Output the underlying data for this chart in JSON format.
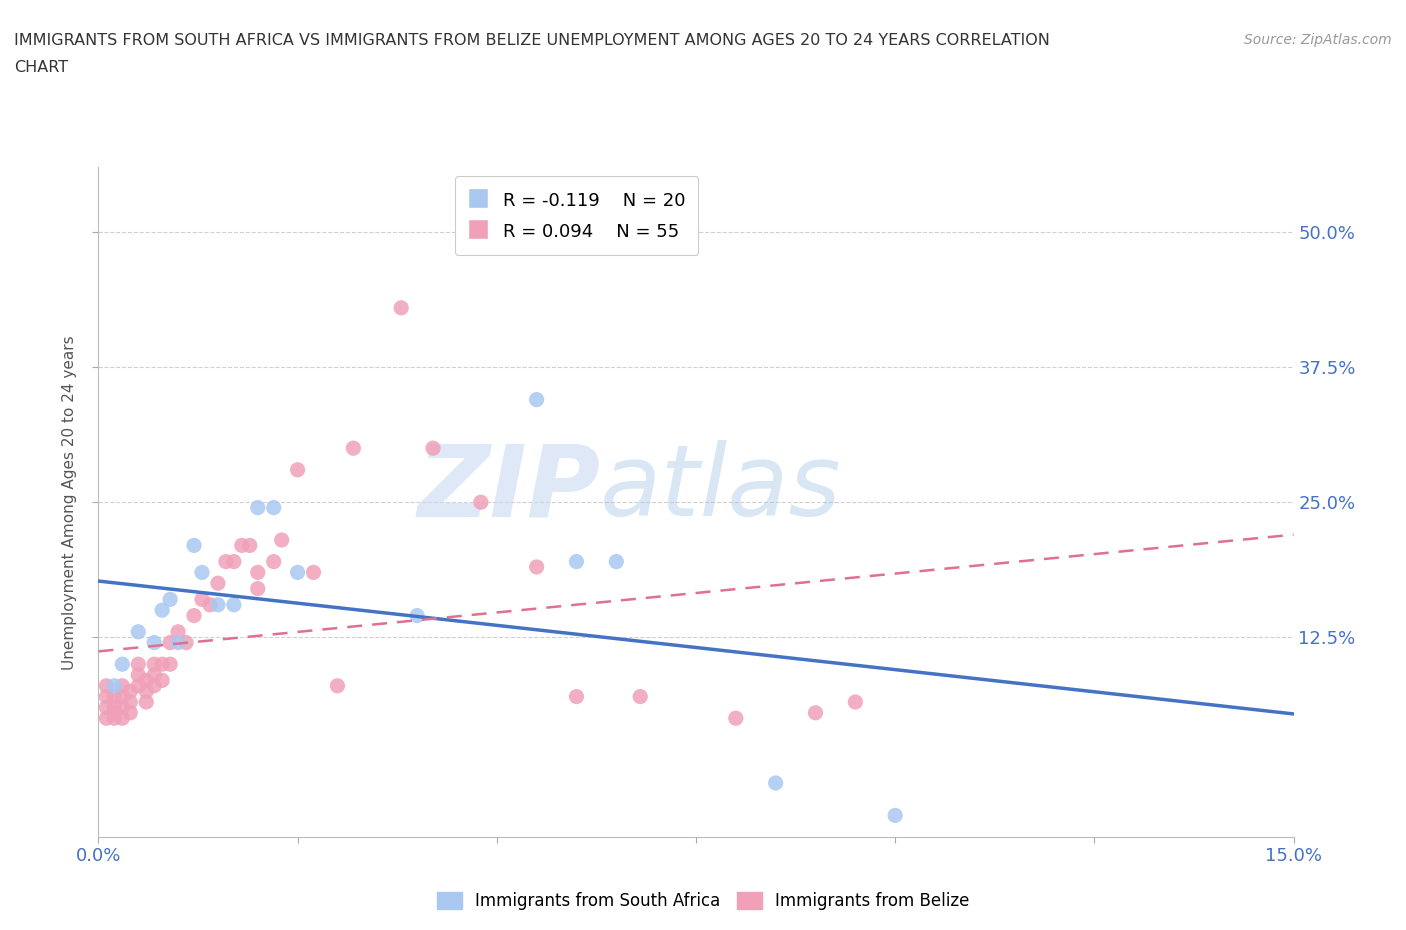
{
  "title_line1": "IMMIGRANTS FROM SOUTH AFRICA VS IMMIGRANTS FROM BELIZE UNEMPLOYMENT AMONG AGES 20 TO 24 YEARS CORRELATION",
  "title_line2": "CHART",
  "source_text": "Source: ZipAtlas.com",
  "ylabel": "Unemployment Among Ages 20 to 24 years",
  "xlim": [
    0.0,
    0.15
  ],
  "ylim": [
    -0.06,
    0.56
  ],
  "yticks": [
    0.125,
    0.25,
    0.375,
    0.5
  ],
  "ytick_labels": [
    "12.5%",
    "25.0%",
    "37.5%",
    "50.0%"
  ],
  "xticks": [
    0.0,
    0.025,
    0.05,
    0.075,
    0.1,
    0.125,
    0.15
  ],
  "xtick_labels": [
    "0.0%",
    "",
    "",
    "",
    "",
    "",
    "15.0%"
  ],
  "color_blue": "#a8c8f0",
  "color_pink": "#f0a0b8",
  "trend_blue": "#4472c4",
  "trend_pink": "#e07090",
  "legend_R1": "R = -0.119",
  "legend_N1": "N = 20",
  "legend_R2": "R = 0.094",
  "legend_N2": "N = 55",
  "label1": "Immigrants from South Africa",
  "label2": "Immigrants from Belize",
  "south_africa_x": [
    0.002,
    0.003,
    0.005,
    0.007,
    0.008,
    0.009,
    0.01,
    0.012,
    0.013,
    0.015,
    0.017,
    0.02,
    0.022,
    0.025,
    0.04,
    0.055,
    0.06,
    0.065,
    0.085,
    0.1
  ],
  "south_africa_y": [
    0.08,
    0.1,
    0.13,
    0.12,
    0.15,
    0.16,
    0.12,
    0.21,
    0.185,
    0.155,
    0.155,
    0.245,
    0.245,
    0.185,
    0.145,
    0.345,
    0.195,
    0.195,
    -0.01,
    -0.04
  ],
  "belize_x": [
    0.001,
    0.001,
    0.001,
    0.001,
    0.002,
    0.002,
    0.002,
    0.002,
    0.003,
    0.003,
    0.003,
    0.003,
    0.004,
    0.004,
    0.004,
    0.005,
    0.005,
    0.005,
    0.006,
    0.006,
    0.006,
    0.007,
    0.007,
    0.007,
    0.008,
    0.008,
    0.009,
    0.009,
    0.01,
    0.011,
    0.012,
    0.013,
    0.014,
    0.015,
    0.016,
    0.017,
    0.018,
    0.019,
    0.02,
    0.02,
    0.022,
    0.023,
    0.025,
    0.027,
    0.03,
    0.032,
    0.038,
    0.042,
    0.048,
    0.055,
    0.06,
    0.068,
    0.08,
    0.09,
    0.095
  ],
  "belize_y": [
    0.08,
    0.07,
    0.06,
    0.05,
    0.07,
    0.06,
    0.055,
    0.05,
    0.08,
    0.07,
    0.06,
    0.05,
    0.075,
    0.065,
    0.055,
    0.1,
    0.09,
    0.08,
    0.085,
    0.075,
    0.065,
    0.1,
    0.09,
    0.08,
    0.1,
    0.085,
    0.12,
    0.1,
    0.13,
    0.12,
    0.145,
    0.16,
    0.155,
    0.175,
    0.195,
    0.195,
    0.21,
    0.21,
    0.185,
    0.17,
    0.195,
    0.215,
    0.28,
    0.185,
    0.08,
    0.3,
    0.43,
    0.3,
    0.25,
    0.19,
    0.07,
    0.07,
    0.05,
    0.055,
    0.065
  ],
  "watermark_big": "ZIP",
  "watermark_small": "atlas",
  "background_color": "#ffffff",
  "grid_color": "#d0d0d0"
}
